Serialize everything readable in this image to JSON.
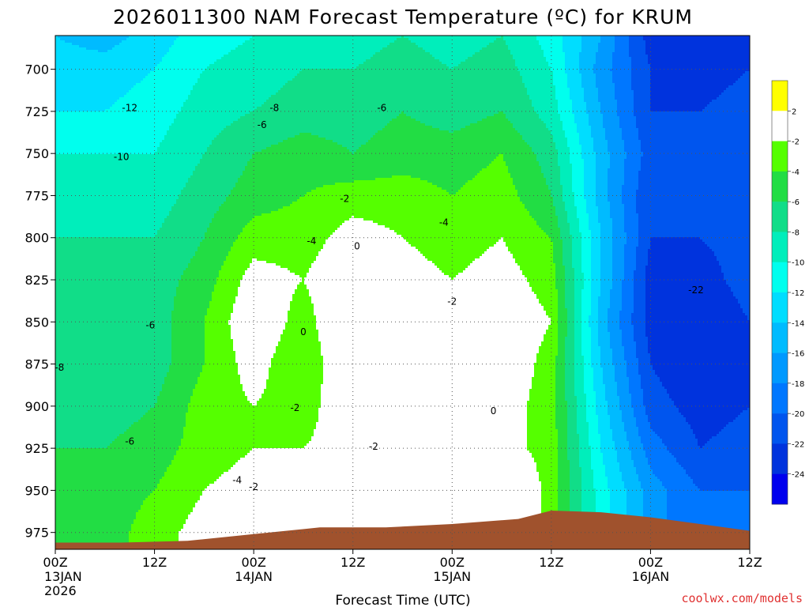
{
  "chart_data": {
    "type": "heatmap",
    "title": "2026011300 NAM Forecast Temperature (ºC) for KRUM",
    "xlabel": "Forecast Time (UTC)",
    "ylabel": "",
    "x_ticks": [
      {
        "hour": 0,
        "lines": [
          "00Z",
          "13JAN",
          "2026"
        ]
      },
      {
        "hour": 12,
        "lines": [
          "12Z"
        ]
      },
      {
        "hour": 24,
        "lines": [
          "00Z",
          "14JAN"
        ]
      },
      {
        "hour": 36,
        "lines": [
          "12Z"
        ]
      },
      {
        "hour": 48,
        "lines": [
          "00Z",
          "15JAN"
        ]
      },
      {
        "hour": 60,
        "lines": [
          "12Z"
        ]
      },
      {
        "hour": 72,
        "lines": [
          "00Z",
          "16JAN"
        ]
      },
      {
        "hour": 84,
        "lines": [
          "12Z"
        ]
      }
    ],
    "xlim_hours": [
      0,
      84
    ],
    "y_ticks": [
      700,
      725,
      750,
      775,
      800,
      825,
      850,
      875,
      900,
      925,
      950,
      975
    ],
    "ylim_hpa": [
      985,
      680
    ],
    "grid": true,
    "colorbar": {
      "placement": "right",
      "levels": [
        2,
        -2,
        -4,
        -6,
        -8,
        -10,
        -12,
        -14,
        -16,
        -18,
        -20,
        -22,
        -24
      ],
      "colors": [
        "#ffff00",
        "#ffffff",
        "#55ff00",
        "#22dd44",
        "#11dd88",
        "#00eebb",
        "#00ffee",
        "#00ddff",
        "#00bbff",
        "#0099ff",
        "#0077ff",
        "#0055ee",
        "#0033dd",
        "#0000ee"
      ]
    },
    "surface_pressure": [
      {
        "hour": 0,
        "hpa": 981
      },
      {
        "hour": 8,
        "hpa": 981
      },
      {
        "hour": 16,
        "hpa": 980
      },
      {
        "hour": 24,
        "hpa": 976
      },
      {
        "hour": 32,
        "hpa": 972
      },
      {
        "hour": 40,
        "hpa": 972
      },
      {
        "hour": 48,
        "hpa": 970
      },
      {
        "hour": 56,
        "hpa": 967
      },
      {
        "hour": 60,
        "hpa": 962
      },
      {
        "hour": 66,
        "hpa": 963
      },
      {
        "hour": 72,
        "hpa": 966
      },
      {
        "hour": 78,
        "hpa": 970
      },
      {
        "hour": 84,
        "hpa": 974
      }
    ],
    "temperature_columns": [
      {
        "hour": 0,
        "profile": [
          [
            680,
            -14
          ],
          [
            700,
            -13
          ],
          [
            725,
            -12
          ],
          [
            750,
            -10
          ],
          [
            775,
            -9
          ],
          [
            800,
            -8
          ],
          [
            825,
            -8
          ],
          [
            850,
            -8
          ],
          [
            875,
            -8
          ],
          [
            900,
            -7
          ],
          [
            925,
            -6
          ],
          [
            950,
            -5
          ],
          [
            975,
            -5
          ]
        ]
      },
      {
        "hour": 6,
        "profile": [
          [
            680,
            -15
          ],
          [
            700,
            -13
          ],
          [
            725,
            -12
          ],
          [
            750,
            -10
          ],
          [
            775,
            -9
          ],
          [
            800,
            -8
          ],
          [
            825,
            -7
          ],
          [
            850,
            -6
          ],
          [
            875,
            -7
          ],
          [
            900,
            -7
          ],
          [
            925,
            -6
          ],
          [
            950,
            -5
          ],
          [
            975,
            -5
          ]
        ]
      },
      {
        "hour": 12,
        "profile": [
          [
            680,
            -13
          ],
          [
            700,
            -12
          ],
          [
            725,
            -11
          ],
          [
            750,
            -10
          ],
          [
            775,
            -9
          ],
          [
            800,
            -8
          ],
          [
            825,
            -7
          ],
          [
            850,
            -7
          ],
          [
            875,
            -7
          ],
          [
            900,
            -6
          ],
          [
            925,
            -5
          ],
          [
            950,
            -4
          ],
          [
            975,
            -3
          ]
        ]
      },
      {
        "hour": 18,
        "profile": [
          [
            680,
            -11
          ],
          [
            700,
            -10
          ],
          [
            725,
            -9
          ],
          [
            750,
            -8
          ],
          [
            775,
            -7
          ],
          [
            800,
            -6
          ],
          [
            825,
            -5
          ],
          [
            850,
            -4
          ],
          [
            875,
            -4
          ],
          [
            900,
            -3
          ],
          [
            925,
            -3
          ],
          [
            950,
            -2
          ],
          [
            975,
            -1
          ]
        ]
      },
      {
        "hour": 24,
        "profile": [
          [
            680,
            -10
          ],
          [
            700,
            -9
          ],
          [
            725,
            -8
          ],
          [
            750,
            -6
          ],
          [
            775,
            -5
          ],
          [
            800,
            -3
          ],
          [
            825,
            -1
          ],
          [
            850,
            0
          ],
          [
            875,
            -1
          ],
          [
            900,
            -2
          ],
          [
            925,
            -2
          ],
          [
            950,
            -1
          ],
          [
            975,
            -1
          ]
        ]
      },
      {
        "hour": 30,
        "profile": [
          [
            680,
            -9
          ],
          [
            700,
            -8
          ],
          [
            725,
            -7
          ],
          [
            750,
            -5
          ],
          [
            775,
            -4
          ],
          [
            800,
            -3
          ],
          [
            825,
            -2
          ],
          [
            850,
            -3
          ],
          [
            875,
            -4
          ],
          [
            900,
            -3
          ],
          [
            925,
            -2
          ],
          [
            950,
            -1
          ],
          [
            975,
            -1
          ]
        ]
      },
      {
        "hour": 36,
        "profile": [
          [
            680,
            -9
          ],
          [
            700,
            -8
          ],
          [
            725,
            -7
          ],
          [
            750,
            -6
          ],
          [
            775,
            -3
          ],
          [
            800,
            -1
          ],
          [
            825,
            0
          ],
          [
            850,
            1
          ],
          [
            875,
            1
          ],
          [
            900,
            0
          ],
          [
            925,
            -1
          ],
          [
            950,
            -1
          ],
          [
            975,
            -1
          ]
        ]
      },
      {
        "hour": 42,
        "profile": [
          [
            680,
            -8
          ],
          [
            700,
            -7
          ],
          [
            725,
            -6
          ],
          [
            750,
            -5
          ],
          [
            775,
            -3
          ],
          [
            800,
            -2
          ],
          [
            825,
            -1
          ],
          [
            850,
            0
          ],
          [
            875,
            -1
          ],
          [
            900,
            -1
          ],
          [
            925,
            -1
          ],
          [
            950,
            -1
          ],
          [
            975,
            -1
          ]
        ]
      },
      {
        "hour": 48,
        "profile": [
          [
            680,
            -9
          ],
          [
            700,
            -8
          ],
          [
            725,
            -7
          ],
          [
            750,
            -5
          ],
          [
            775,
            -4
          ],
          [
            800,
            -3
          ],
          [
            825,
            -2
          ],
          [
            850,
            -1
          ],
          [
            875,
            -1
          ],
          [
            900,
            0
          ],
          [
            925,
            -1
          ],
          [
            950,
            -1
          ],
          [
            975,
            -1
          ]
        ]
      },
      {
        "hour": 54,
        "profile": [
          [
            680,
            -8
          ],
          [
            700,
            -7
          ],
          [
            725,
            -6
          ],
          [
            750,
            -4
          ],
          [
            775,
            -3
          ],
          [
            800,
            -2
          ],
          [
            825,
            -1
          ],
          [
            850,
            0
          ],
          [
            875,
            0
          ],
          [
            900,
            -1
          ],
          [
            925,
            -1
          ],
          [
            950,
            2
          ],
          [
            975,
            1
          ]
        ]
      },
      {
        "hour": 60,
        "profile": [
          [
            680,
            -11
          ],
          [
            700,
            -10
          ],
          [
            725,
            -9
          ],
          [
            750,
            -7
          ],
          [
            775,
            -6
          ],
          [
            800,
            -4
          ],
          [
            825,
            -3
          ],
          [
            850,
            -2
          ],
          [
            875,
            -3
          ],
          [
            900,
            -3
          ],
          [
            925,
            -3
          ],
          [
            950,
            -3
          ],
          [
            975,
            -3
          ]
        ]
      },
      {
        "hour": 66,
        "profile": [
          [
            680,
            -16
          ],
          [
            700,
            -17
          ],
          [
            725,
            -16
          ],
          [
            750,
            -15
          ],
          [
            775,
            -15
          ],
          [
            800,
            -14
          ],
          [
            825,
            -14
          ],
          [
            850,
            -15
          ],
          [
            875,
            -14
          ],
          [
            900,
            -13
          ],
          [
            925,
            -12
          ],
          [
            950,
            -11
          ],
          [
            975,
            -11
          ]
        ]
      },
      {
        "hour": 72,
        "profile": [
          [
            680,
            -23
          ],
          [
            700,
            -22
          ],
          [
            725,
            -22
          ],
          [
            750,
            -21
          ],
          [
            775,
            -22
          ],
          [
            800,
            -22
          ],
          [
            825,
            -23
          ],
          [
            850,
            -23
          ],
          [
            875,
            -22
          ],
          [
            900,
            -21
          ],
          [
            925,
            -19
          ],
          [
            950,
            -17
          ],
          [
            975,
            -17
          ]
        ]
      },
      {
        "hour": 78,
        "profile": [
          [
            680,
            -24
          ],
          [
            700,
            -23
          ],
          [
            725,
            -22
          ],
          [
            750,
            -22
          ],
          [
            775,
            -21
          ],
          [
            800,
            -22
          ],
          [
            825,
            -23
          ],
          [
            850,
            -24
          ],
          [
            875,
            -24
          ],
          [
            900,
            -23
          ],
          [
            925,
            -22
          ],
          [
            950,
            -20
          ],
          [
            975,
            -20
          ]
        ]
      },
      {
        "hour": 84,
        "profile": [
          [
            680,
            -23
          ],
          [
            700,
            -22
          ],
          [
            725,
            -21
          ],
          [
            750,
            -20
          ],
          [
            775,
            -20
          ],
          [
            800,
            -21
          ],
          [
            825,
            -21
          ],
          [
            850,
            -22
          ],
          [
            875,
            -22
          ],
          [
            900,
            -22
          ],
          [
            925,
            -21
          ],
          [
            950,
            -20
          ],
          [
            975,
            -20
          ]
        ]
      }
    ],
    "contour_labels": [
      {
        "text": "-12",
        "hour": 9,
        "hpa": 723
      },
      {
        "text": "-10",
        "hour": 8,
        "hpa": 752
      },
      {
        "text": "-8",
        "hour": 0.5,
        "hpa": 877
      },
      {
        "text": "-6",
        "hour": 11.5,
        "hpa": 852
      },
      {
        "text": "-6",
        "hour": 9,
        "hpa": 921
      },
      {
        "text": "-8",
        "hour": 26.5,
        "hpa": 723
      },
      {
        "text": "-6",
        "hour": 25,
        "hpa": 733
      },
      {
        "text": "-6",
        "hour": 39.5,
        "hpa": 723
      },
      {
        "text": "-2",
        "hour": 35,
        "hpa": 777
      },
      {
        "text": "-4",
        "hour": 47,
        "hpa": 791
      },
      {
        "text": "-4",
        "hour": 31,
        "hpa": 802
      },
      {
        "text": "0",
        "hour": 36.5,
        "hpa": 805
      },
      {
        "text": "0",
        "hour": 30,
        "hpa": 856
      },
      {
        "text": "-2",
        "hour": 29,
        "hpa": 901
      },
      {
        "text": "-2",
        "hour": 48,
        "hpa": 838
      },
      {
        "text": "0",
        "hour": 53,
        "hpa": 903
      },
      {
        "text": "-2",
        "hour": 38.5,
        "hpa": 924
      },
      {
        "text": "-4",
        "hour": 22,
        "hpa": 944
      },
      {
        "text": "-2",
        "hour": 24,
        "hpa": 948
      },
      {
        "text": "-22",
        "hour": 77.5,
        "hpa": 831
      }
    ]
  },
  "credit": "coolwx.com/models"
}
